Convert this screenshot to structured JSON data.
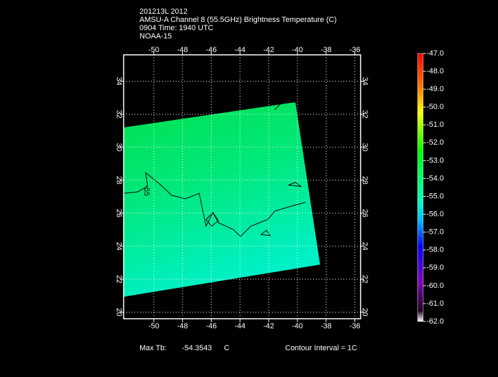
{
  "header": {
    "lines": [
      "201213L 2012",
      "AMSU-A Channel 8 (55.5GHz) Brightness Temperature (C)",
      "0904 Time: 1940 UTC",
      "NOAA-15"
    ]
  },
  "map": {
    "lonlim": [
      -52.1,
      -35.6
    ],
    "latlim": [
      19.6,
      35.6
    ],
    "lon_ticks": [
      -50,
      -48,
      -46,
      -44,
      -42,
      -40,
      -38,
      -36
    ],
    "lat_ticks": [
      20,
      22,
      24,
      26,
      28,
      30,
      32,
      34
    ],
    "contour_label": "-55"
  },
  "colorbar": {
    "lim": [
      -62,
      -47
    ],
    "ticks": [
      {
        "value": -47,
        "label": "-47.0"
      },
      {
        "value": -48,
        "label": "-48.0"
      },
      {
        "value": -49,
        "label": "-49.0"
      },
      {
        "value": -50,
        "label": "-50.0"
      },
      {
        "value": -51,
        "label": "-51.0"
      },
      {
        "value": -52,
        "label": "-52.0"
      },
      {
        "value": -53,
        "label": "-53.0"
      },
      {
        "value": -54,
        "label": "-54.0"
      },
      {
        "value": -55,
        "label": "-55.0"
      },
      {
        "value": -56,
        "label": "-56.0"
      },
      {
        "value": -57,
        "label": "-57.0"
      },
      {
        "value": -58,
        "label": "-58.0"
      },
      {
        "value": -59,
        "label": "-59.0"
      },
      {
        "value": -60,
        "label": "-60.0"
      },
      {
        "value": -61,
        "label": "-61.0"
      },
      {
        "value": -62,
        "label": "-62.0"
      }
    ]
  },
  "footer": {
    "max_label": "Max Tb:",
    "max_value": -54.3543,
    "max_unit": "C",
    "contour_interval": "Contour Interval = 1C"
  }
}
